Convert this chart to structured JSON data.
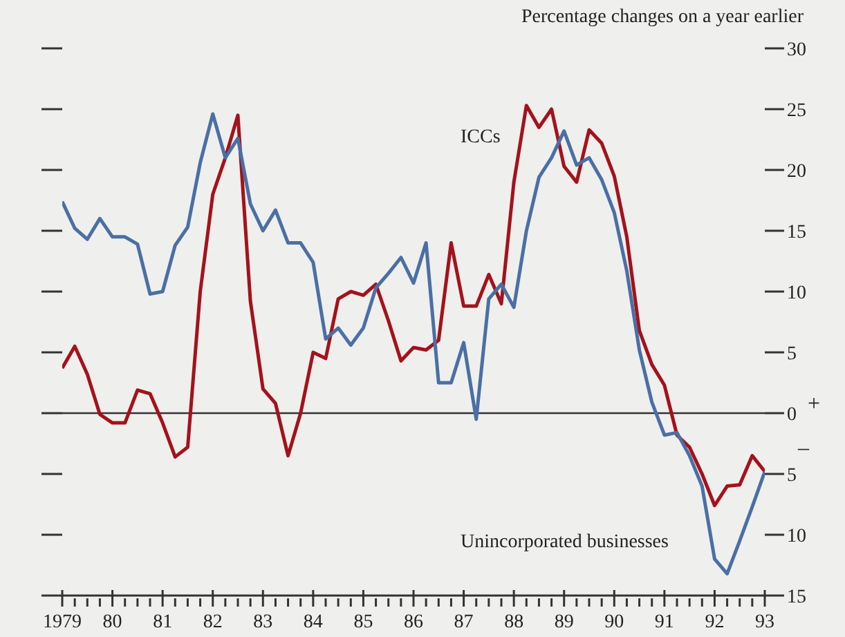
{
  "chart_data": {
    "type": "line",
    "ylabel": "Percentage changes on a year earlier",
    "x": [
      1979,
      1979.25,
      1979.5,
      1979.75,
      1980,
      1980.25,
      1980.5,
      1980.75,
      1981,
      1981.25,
      1981.5,
      1981.75,
      1982,
      1982.25,
      1982.5,
      1982.75,
      1983,
      1983.25,
      1983.5,
      1983.75,
      1984,
      1984.25,
      1984.5,
      1984.75,
      1985,
      1985.25,
      1985.5,
      1985.75,
      1986,
      1986.25,
      1986.5,
      1986.75,
      1987,
      1987.25,
      1987.5,
      1987.75,
      1988,
      1988.25,
      1988.5,
      1988.75,
      1989,
      1989.25,
      1989.5,
      1989.75,
      1990,
      1990.25,
      1990.5,
      1990.75,
      1991,
      1991.25,
      1991.5,
      1991.75,
      1992,
      1992.25,
      1992.5,
      1992.75,
      1993
    ],
    "series": [
      {
        "name": "ICCs",
        "color": "#a3121c",
        "values": [
          3.7,
          5.5,
          3.2,
          -0.1,
          -0.8,
          -0.8,
          1.9,
          1.6,
          -0.8,
          -3.6,
          -2.8,
          10,
          18,
          21,
          24.5,
          9.2,
          2,
          0.8,
          -3.5,
          0,
          5,
          4.5,
          9.4,
          10,
          9.7,
          10.6,
          7.6,
          4.3,
          5.4,
          5.2,
          6,
          14,
          8.8,
          8.8,
          11.4,
          9,
          19,
          25.3,
          23.5,
          25,
          20.3,
          19,
          23.3,
          22.2,
          19.5,
          14.5,
          6.8,
          4,
          2.3,
          -1.8,
          -2.8,
          -5,
          -7.6,
          -6,
          -5.9,
          -3.5,
          -4.8
        ]
      },
      {
        "name": "Unincorporated businesses",
        "color": "#4a6fa5",
        "values": [
          17.4,
          15.2,
          14.3,
          16,
          14.5,
          14.5,
          13.9,
          9.8,
          10,
          13.8,
          15.3,
          20.6,
          24.6,
          21,
          22.6,
          17.2,
          15,
          16.7,
          14,
          14,
          12.4,
          6.1,
          7,
          5.6,
          7,
          10.3,
          11.5,
          12.8,
          10.7,
          14,
          2.5,
          2.5,
          5.8,
          -0.5,
          9.4,
          10.6,
          8.7,
          15,
          19.4,
          21,
          23.2,
          20.4,
          21,
          19.2,
          16.5,
          11.7,
          5.2,
          0.9,
          -1.8,
          -1.6,
          -3.5,
          -6,
          -12,
          -13.2,
          -10.5,
          -7.7,
          -4.8
        ]
      }
    ],
    "xlim": [
      1979,
      1993
    ],
    "xticks": [
      {
        "value": 1979,
        "label": "1979"
      },
      {
        "value": 1979.25,
        "label": null
      },
      {
        "value": 1979.5,
        "label": null
      },
      {
        "value": 1979.75,
        "label": null
      },
      {
        "value": 1980,
        "label": "80"
      },
      {
        "value": 1980.25,
        "label": null
      },
      {
        "value": 1980.5,
        "label": null
      },
      {
        "value": 1980.75,
        "label": null
      },
      {
        "value": 1981,
        "label": "81"
      },
      {
        "value": 1981.25,
        "label": null
      },
      {
        "value": 1981.5,
        "label": null
      },
      {
        "value": 1981.75,
        "label": null
      },
      {
        "value": 1982,
        "label": "82"
      },
      {
        "value": 1982.25,
        "label": null
      },
      {
        "value": 1982.5,
        "label": null
      },
      {
        "value": 1982.75,
        "label": null
      },
      {
        "value": 1983,
        "label": "83"
      },
      {
        "value": 1983.25,
        "label": null
      },
      {
        "value": 1983.5,
        "label": null
      },
      {
        "value": 1983.75,
        "label": null
      },
      {
        "value": 1984,
        "label": "84"
      },
      {
        "value": 1984.25,
        "label": null
      },
      {
        "value": 1984.5,
        "label": null
      },
      {
        "value": 1984.75,
        "label": null
      },
      {
        "value": 1985,
        "label": "85"
      },
      {
        "value": 1985.25,
        "label": null
      },
      {
        "value": 1985.5,
        "label": null
      },
      {
        "value": 1985.75,
        "label": null
      },
      {
        "value": 1986,
        "label": "86"
      },
      {
        "value": 1986.25,
        "label": null
      },
      {
        "value": 1986.5,
        "label": null
      },
      {
        "value": 1986.75,
        "label": null
      },
      {
        "value": 1987,
        "label": "87"
      },
      {
        "value": 1987.25,
        "label": null
      },
      {
        "value": 1987.5,
        "label": null
      },
      {
        "value": 1987.75,
        "label": null
      },
      {
        "value": 1988,
        "label": "88"
      },
      {
        "value": 1988.25,
        "label": null
      },
      {
        "value": 1988.5,
        "label": null
      },
      {
        "value": 1988.75,
        "label": null
      },
      {
        "value": 1989,
        "label": "89"
      },
      {
        "value": 1989.25,
        "label": null
      },
      {
        "value": 1989.5,
        "label": null
      },
      {
        "value": 1989.75,
        "label": null
      },
      {
        "value": 1990,
        "label": "90"
      },
      {
        "value": 1990.25,
        "label": null
      },
      {
        "value": 1990.5,
        "label": null
      },
      {
        "value": 1990.75,
        "label": null
      },
      {
        "value": 1991,
        "label": "91"
      },
      {
        "value": 1991.25,
        "label": null
      },
      {
        "value": 1991.5,
        "label": null
      },
      {
        "value": 1991.75,
        "label": null
      },
      {
        "value": 1992,
        "label": "92"
      },
      {
        "value": 1992.25,
        "label": null
      },
      {
        "value": 1992.5,
        "label": null
      },
      {
        "value": 1992.75,
        "label": null
      },
      {
        "value": 1993,
        "label": "93"
      }
    ],
    "ylim": [
      -15,
      30
    ],
    "yticks": [
      {
        "value": -15,
        "label": "15"
      },
      {
        "value": -10,
        "label": "10"
      },
      {
        "value": -5,
        "label": "5"
      },
      0,
      5,
      10,
      15,
      20,
      25,
      30
    ],
    "ref_lines": [
      {
        "axis": "y",
        "value": 0,
        "color": "#333333"
      }
    ],
    "annotations": [
      "+",
      "–"
    ],
    "marker": "none",
    "line_style": "solid"
  }
}
